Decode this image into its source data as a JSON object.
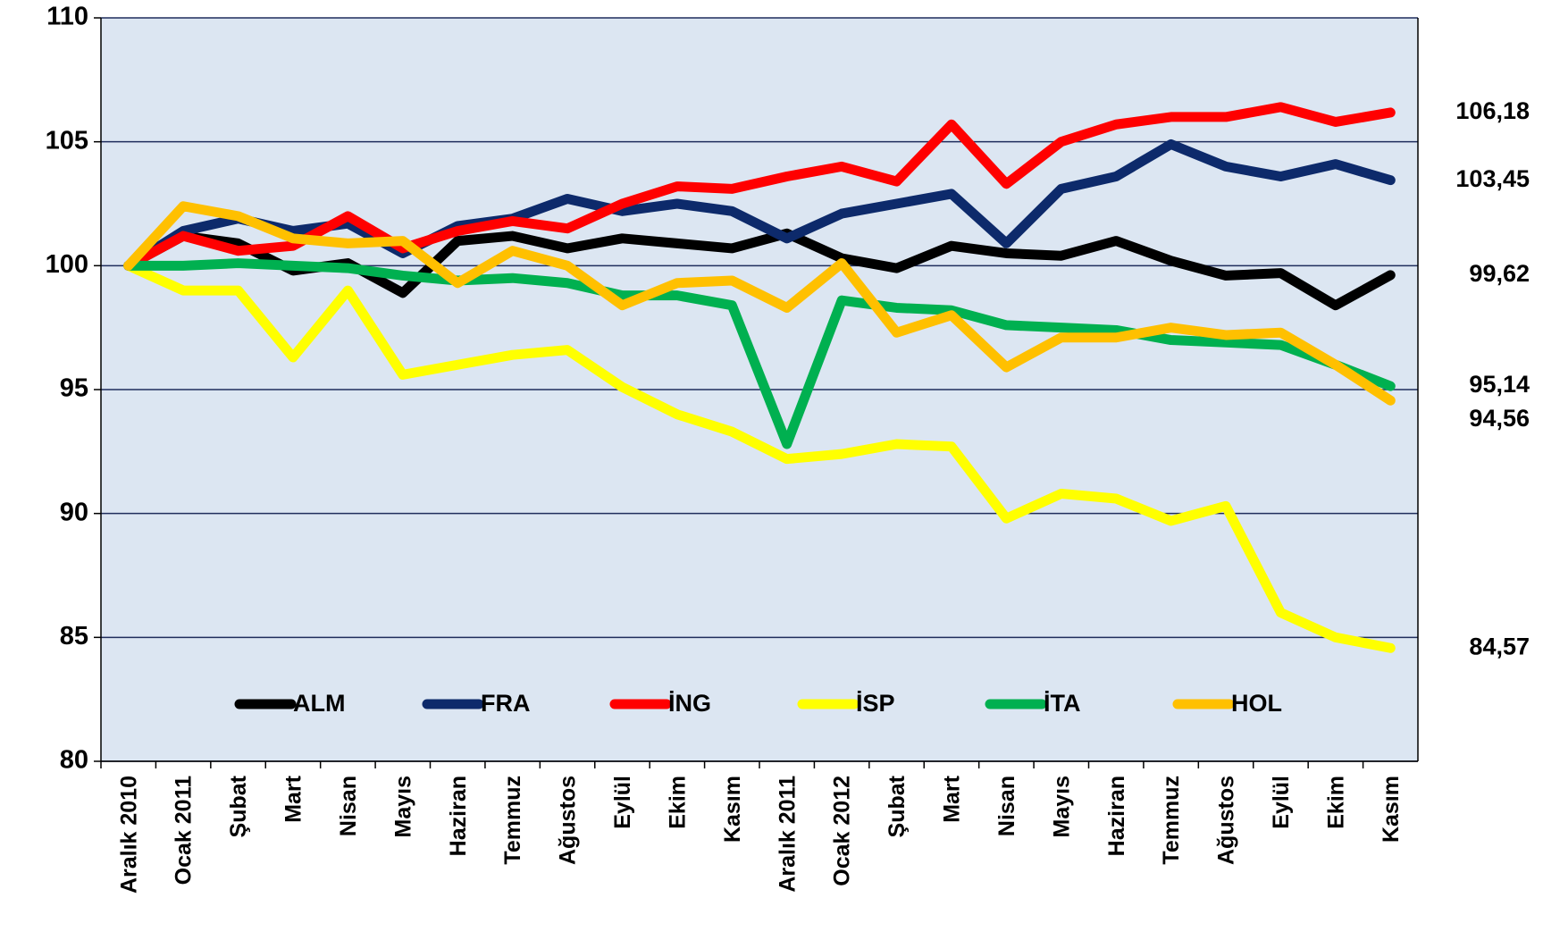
{
  "chart_data": {
    "type": "line",
    "categories": [
      "Aralık 2010",
      "Ocak 2011",
      "Şubat",
      "Mart",
      "Nisan",
      "Mayıs",
      "Haziran",
      "Temmuz",
      "Ağustos",
      "Eylül",
      "Ekim",
      "Kasım",
      "Aralık 2011",
      "Ocak 2012",
      "Şubat",
      "Mart",
      "Nisan",
      "Mayıs",
      "Haziran",
      "Temmuz",
      "Ağustos",
      "Eylül",
      "Ekim",
      "Kasım"
    ],
    "series": [
      {
        "name": "ALM",
        "color": "#000000",
        "values": [
          100,
          101.2,
          100.9,
          99.8,
          100.1,
          98.9,
          101.0,
          101.2,
          100.7,
          101.1,
          100.9,
          100.7,
          101.3,
          100.3,
          99.9,
          100.8,
          100.5,
          100.4,
          101.0,
          100.2,
          99.6,
          99.7,
          98.4,
          99.62
        ],
        "value_labels": [
          null,
          null,
          null,
          null,
          null,
          null,
          null,
          null,
          null,
          null,
          null,
          null,
          null,
          null,
          null,
          null,
          null,
          null,
          null,
          null,
          null,
          null,
          null,
          "99,62"
        ]
      },
      {
        "name": "FRA",
        "color": "#0d2a6b",
        "values": [
          100,
          101.4,
          101.9,
          101.4,
          101.7,
          100.5,
          101.6,
          101.9,
          102.7,
          102.2,
          102.5,
          102.2,
          101.1,
          102.1,
          102.5,
          102.9,
          100.9,
          103.1,
          103.6,
          104.9,
          104.0,
          103.6,
          104.1,
          103.45
        ],
        "value_labels": [
          null,
          null,
          null,
          null,
          null,
          null,
          null,
          null,
          null,
          null,
          null,
          null,
          null,
          null,
          null,
          null,
          null,
          null,
          null,
          null,
          null,
          null,
          null,
          "103,45"
        ]
      },
      {
        "name": "İNG",
        "color": "#ff0000",
        "values": [
          100,
          101.2,
          100.6,
          100.8,
          102.0,
          100.7,
          101.4,
          101.8,
          101.5,
          102.5,
          103.2,
          103.1,
          103.6,
          104.0,
          103.4,
          105.7,
          103.3,
          105.0,
          105.7,
          106.0,
          106.0,
          106.4,
          105.8,
          106.18
        ],
        "value_labels": [
          null,
          null,
          null,
          null,
          null,
          null,
          null,
          null,
          null,
          null,
          null,
          null,
          null,
          null,
          null,
          null,
          null,
          null,
          null,
          null,
          null,
          null,
          null,
          "106,18"
        ]
      },
      {
        "name": "İSP",
        "color": "#ffff00",
        "values": [
          100,
          99.0,
          99.0,
          96.3,
          99.0,
          95.6,
          96.0,
          96.4,
          96.6,
          95.1,
          94.0,
          93.3,
          92.2,
          92.4,
          92.8,
          92.7,
          89.8,
          90.8,
          90.6,
          89.7,
          90.3,
          86.0,
          85.0,
          84.57
        ],
        "value_labels": [
          null,
          null,
          null,
          null,
          null,
          null,
          null,
          null,
          null,
          null,
          null,
          null,
          null,
          null,
          null,
          null,
          null,
          null,
          null,
          null,
          null,
          null,
          null,
          "84,57"
        ]
      },
      {
        "name": "İTA",
        "color": "#00b050",
        "values": [
          100,
          100,
          100.1,
          100,
          99.9,
          99.6,
          99.4,
          99.5,
          99.3,
          98.8,
          98.8,
          98.4,
          92.8,
          98.6,
          98.3,
          98.2,
          97.6,
          97.5,
          97.4,
          97.0,
          96.9,
          96.8,
          96.0,
          95.14
        ],
        "value_labels": [
          null,
          null,
          null,
          null,
          null,
          null,
          null,
          null,
          null,
          null,
          null,
          null,
          null,
          null,
          null,
          null,
          null,
          null,
          null,
          null,
          null,
          null,
          null,
          "95,14"
        ]
      },
      {
        "name": "HOL",
        "color": "#ffc000",
        "values": [
          100,
          102.4,
          102.0,
          101.1,
          100.9,
          101.0,
          99.3,
          100.6,
          100.0,
          98.4,
          99.3,
          99.4,
          98.3,
          100.1,
          97.3,
          98.0,
          95.9,
          97.1,
          97.1,
          97.5,
          97.2,
          97.3,
          96.0,
          94.56
        ],
        "value_labels": [
          null,
          null,
          null,
          null,
          null,
          null,
          null,
          null,
          null,
          null,
          null,
          null,
          null,
          null,
          null,
          null,
          null,
          null,
          null,
          null,
          null,
          null,
          null,
          "94,56"
        ]
      }
    ],
    "ylim": [
      80,
      110
    ],
    "yticks": [
      80,
      85,
      90,
      95,
      100,
      105,
      110
    ],
    "grid": true,
    "legend": "bottom"
  }
}
